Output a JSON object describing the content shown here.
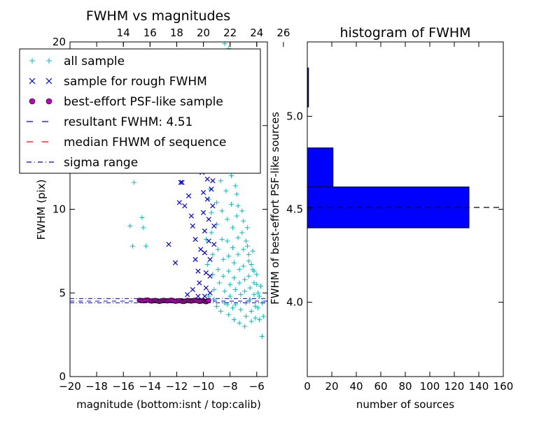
{
  "chart_data": [
    {
      "type": "scatter",
      "title": "FWHM vs magnitudes",
      "xlabel": "magnitude (bottom:isnt / top:calib)",
      "ylabel": "FWHM (pix)",
      "xlim": [
        -20,
        -5.2
      ],
      "ylim": [
        0,
        20
      ],
      "xticks": [
        "−20",
        "−18",
        "−16",
        "−14",
        "−12",
        "−10",
        "−8",
        "−6"
      ],
      "xtick_values": [
        -20,
        -18,
        -16,
        -14,
        -12,
        -10,
        -8,
        -6
      ],
      "yticks": [
        "0",
        "5",
        "10",
        "15",
        "20"
      ],
      "ytick_values": [
        0,
        5,
        10,
        15,
        20
      ],
      "top_axis": {
        "ticks": [
          "14",
          "16",
          "18",
          "20",
          "22",
          "24",
          "26"
        ],
        "values": [
          14,
          16,
          18,
          20,
          22,
          24,
          26
        ],
        "offset_from_bottom": 30.0
      },
      "legend_position": "upper-left",
      "legend": [
        {
          "label": "all sample",
          "marker": "plus",
          "color": "#00bfbf"
        },
        {
          "label": "sample for rough FWHM",
          "marker": "x",
          "color": "#0000ff"
        },
        {
          "label": "best-effort PSF-like sample",
          "marker": "circle",
          "color": "#bf00bf"
        },
        {
          "label": "resultant FWHM: 4.51",
          "marker": "dash",
          "color": "#0000ff"
        },
        {
          "label": "median FHWM of sequence",
          "marker": "dash",
          "color": "#ff0000"
        },
        {
          "label": "sigma range",
          "marker": "dashdot",
          "color": "#0000ff"
        }
      ],
      "resultant_fwhm": 4.51,
      "median_fwhm": 4.51,
      "sigma_range": [
        4.41,
        4.66
      ],
      "series": [
        {
          "name": "all sample",
          "points": [
            [
              -15.5,
              9.0
            ],
            [
              -15.3,
              7.8
            ],
            [
              -15.2,
              11.6
            ],
            [
              -14.9,
              17.6
            ],
            [
              -14.6,
              9.5
            ],
            [
              -14.5,
              8.9
            ],
            [
              -14.3,
              7.8
            ],
            [
              -14.2,
              14.7
            ],
            [
              -14.1,
              17.0
            ],
            [
              -13.2,
              15.0
            ],
            [
              -9.3,
              17.9
            ],
            [
              -9.1,
              18.4
            ],
            [
              -8.8,
              19.2
            ],
            [
              -8.6,
              17.5
            ],
            [
              -8.4,
              19.9
            ],
            [
              -8.1,
              19.6
            ],
            [
              -7.6,
              19.2
            ],
            [
              -7.9,
              18.2
            ],
            [
              -5.6,
              2.4
            ],
            [
              -9.6,
              12.6
            ],
            [
              -9.5,
              11.2
            ],
            [
              -9.4,
              9.8
            ],
            [
              -9.4,
              8.6
            ],
            [
              -9.3,
              7.3
            ],
            [
              -9.3,
              6.1
            ],
            [
              -9.2,
              5.2
            ],
            [
              -9.2,
              4.6
            ],
            [
              -9.1,
              15.6
            ],
            [
              -9.1,
              13.5
            ],
            [
              -9.0,
              10.4
            ],
            [
              -9.0,
              9.1
            ],
            [
              -8.9,
              7.6
            ],
            [
              -8.9,
              6.4
            ],
            [
              -8.8,
              5.6
            ],
            [
              -8.8,
              12.3
            ],
            [
              -8.7,
              14.8
            ],
            [
              -8.7,
              11.7
            ],
            [
              -8.6,
              9.9
            ],
            [
              -8.6,
              8.2
            ],
            [
              -8.5,
              7.0
            ],
            [
              -8.5,
              6.0
            ],
            [
              -8.4,
              5.1
            ],
            [
              -8.4,
              4.4
            ],
            [
              -8.3,
              13.1
            ],
            [
              -8.3,
              11.1
            ],
            [
              -8.2,
              9.4
            ],
            [
              -8.2,
              8.1
            ],
            [
              -8.1,
              7.2
            ],
            [
              -8.1,
              6.3
            ],
            [
              -8.0,
              5.5
            ],
            [
              -8.0,
              4.8
            ],
            [
              -7.9,
              12.0
            ],
            [
              -7.9,
              10.3
            ],
            [
              -7.8,
              8.9
            ],
            [
              -7.8,
              7.7
            ],
            [
              -7.7,
              6.8
            ],
            [
              -7.7,
              5.9
            ],
            [
              -7.6,
              5.2
            ],
            [
              -7.6,
              4.3
            ],
            [
              -7.5,
              10.9
            ],
            [
              -7.5,
              9.6
            ],
            [
              -7.4,
              8.3
            ],
            [
              -7.4,
              7.3
            ],
            [
              -7.3,
              6.4
            ],
            [
              -7.3,
              5.6
            ],
            [
              -7.2,
              4.9
            ],
            [
              -7.2,
              4.0
            ],
            [
              -7.1,
              9.9
            ],
            [
              -7.1,
              8.6
            ],
            [
              -7.0,
              7.6
            ],
            [
              -7.0,
              6.6
            ],
            [
              -6.9,
              5.8
            ],
            [
              -6.9,
              5.1
            ],
            [
              -6.8,
              4.4
            ],
            [
              -6.8,
              3.6
            ],
            [
              -6.7,
              8.9
            ],
            [
              -6.7,
              7.8
            ],
            [
              -6.6,
              6.9
            ],
            [
              -6.6,
              6.0
            ],
            [
              -6.5,
              5.3
            ],
            [
              -6.5,
              4.6
            ],
            [
              -6.4,
              3.9
            ],
            [
              -6.4,
              3.3
            ],
            [
              -6.3,
              7.5
            ],
            [
              -6.3,
              6.4
            ],
            [
              -6.2,
              5.6
            ],
            [
              -6.2,
              4.9
            ],
            [
              -6.1,
              4.2
            ],
            [
              -6.1,
              3.5
            ],
            [
              -6.0,
              6.1
            ],
            [
              -5.9,
              5.0
            ],
            [
              -5.9,
              4.1
            ],
            [
              -5.8,
              3.4
            ],
            [
              -5.7,
              5.4
            ],
            [
              -5.6,
              4.4
            ],
            [
              -5.5,
              3.6
            ],
            [
              -9.5,
              14.3
            ],
            [
              -9.4,
              16.2
            ],
            [
              -8.9,
              16.8
            ],
            [
              -8.5,
              15.6
            ],
            [
              -8.2,
              14.2
            ],
            [
              -7.8,
              13.2
            ],
            [
              -7.6,
              11.4
            ],
            [
              -7.4,
              10.2
            ],
            [
              -7.0,
              9.3
            ],
            [
              -6.8,
              8.1
            ],
            [
              -6.6,
              7.3
            ],
            [
              -6.4,
              6.7
            ],
            [
              -6.2,
              6.3
            ],
            [
              -6.0,
              5.5
            ],
            [
              -5.8,
              4.8
            ],
            [
              -8.7,
              3.9
            ],
            [
              -8.1,
              3.7
            ],
            [
              -7.7,
              3.4
            ],
            [
              -7.3,
              3.2
            ],
            [
              -6.9,
              3.0
            ],
            [
              -7.8,
              4.1
            ],
            [
              -8.2,
              4.3
            ],
            [
              -9.0,
              4.2
            ],
            [
              -9.6,
              4.8
            ],
            [
              -9.7,
              6.7
            ],
            [
              -9.8,
              8.2
            ],
            [
              -9.6,
              10.6
            ]
          ]
        },
        {
          "name": "sample for rough FWHM",
          "points": [
            [
              -11.7,
              11.6
            ],
            [
              -11.6,
              11.6
            ],
            [
              -12.6,
              7.9
            ],
            [
              -12.1,
              6.8
            ],
            [
              -11.8,
              10.4
            ],
            [
              -11.4,
              10.2
            ],
            [
              -11.1,
              10.8
            ],
            [
              -10.9,
              9.6
            ],
            [
              -10.8,
              9.0
            ],
            [
              -10.6,
              8.2
            ],
            [
              -10.6,
              7.0
            ],
            [
              -10.4,
              6.3
            ],
            [
              -10.3,
              5.6
            ],
            [
              -10.2,
              7.6
            ],
            [
              -10.2,
              13.4
            ],
            [
              -10.1,
              12.2
            ],
            [
              -10.0,
              11.0
            ],
            [
              -10.0,
              9.8
            ],
            [
              -9.9,
              8.7
            ],
            [
              -9.9,
              7.4
            ],
            [
              -9.8,
              6.2
            ],
            [
              -9.8,
              5.3
            ],
            [
              -9.7,
              11.8
            ],
            [
              -9.7,
              10.6
            ],
            [
              -9.6,
              9.4
            ],
            [
              -9.6,
              8.1
            ],
            [
              -9.5,
              7.0
            ],
            [
              -9.5,
              6.0
            ],
            [
              -9.5,
              5.0
            ],
            [
              -9.4,
              11.2
            ],
            [
              -9.3,
              11.7
            ],
            [
              -9.3,
              10.2
            ],
            [
              -9.2,
              9.0
            ],
            [
              -9.2,
              7.9
            ],
            [
              -10.8,
              5.2
            ],
            [
              -11.2,
              4.9
            ],
            [
              -10.4,
              4.8
            ],
            [
              -9.9,
              4.8
            ]
          ]
        },
        {
          "name": "best-effort PSF-like sample",
          "points": [
            [
              -14.8,
              4.56
            ],
            [
              -14.5,
              4.53
            ],
            [
              -14.2,
              4.58
            ],
            [
              -13.9,
              4.51
            ],
            [
              -13.6,
              4.55
            ],
            [
              -13.3,
              4.49
            ],
            [
              -13.0,
              4.56
            ],
            [
              -12.7,
              4.52
            ],
            [
              -12.4,
              4.57
            ],
            [
              -12.1,
              4.5
            ],
            [
              -11.8,
              4.54
            ],
            [
              -11.5,
              4.48
            ],
            [
              -11.2,
              4.55
            ],
            [
              -10.9,
              4.51
            ],
            [
              -10.6,
              4.57
            ],
            [
              -10.3,
              4.49
            ],
            [
              -10.0,
              4.53
            ],
            [
              -9.8,
              4.47
            ],
            [
              -9.6,
              4.55
            ]
          ]
        }
      ]
    },
    {
      "type": "bar",
      "orientation": "horizontal",
      "title": "histogram of FWHM",
      "xlabel": "number of sources",
      "ylabel": "FWHM of best-effort PSF-like sources",
      "xlim": [
        0,
        160
      ],
      "ylim": [
        3.6,
        5.4
      ],
      "xticks": [
        "0",
        "20",
        "40",
        "60",
        "80",
        "100",
        "120",
        "140",
        "160"
      ],
      "xtick_values": [
        0,
        20,
        40,
        60,
        80,
        100,
        120,
        140,
        160
      ],
      "yticks": [
        "4.0",
        "4.5",
        "5.0"
      ],
      "ytick_values": [
        4.0,
        4.5,
        5.0
      ],
      "bar_color": "#0000ff",
      "bins": [
        {
          "low": 4.4,
          "high": 4.62,
          "count": 132
        },
        {
          "low": 4.62,
          "high": 4.83,
          "count": 21
        },
        {
          "low": 5.05,
          "high": 5.26,
          "count": 1
        }
      ],
      "reference_line": 4.51
    }
  ]
}
